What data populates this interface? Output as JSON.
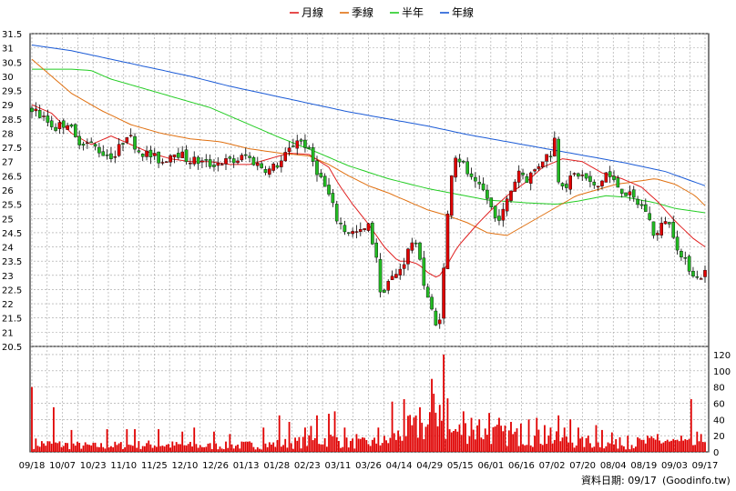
{
  "chart_data": {
    "type": "candlestick",
    "legend": [
      {
        "label": "月線",
        "color": "#e02020"
      },
      {
        "label": "季線",
        "color": "#e07010"
      },
      {
        "label": "半年",
        "color": "#22cc22"
      },
      {
        "label": "年線",
        "color": "#1a5ad6"
      }
    ],
    "price_axis": {
      "ylim": [
        20.5,
        31.5
      ],
      "ticks": [
        "20.5",
        "21",
        "21.5",
        "22",
        "22.5",
        "23",
        "23.5",
        "24",
        "24.5",
        "25",
        "25.5",
        "26",
        "26.5",
        "27",
        "27.5",
        "28",
        "28.5",
        "29",
        "29.5",
        "30",
        "30.5",
        "31",
        "31.5"
      ]
    },
    "volume_axis": {
      "ylim": [
        0,
        130
      ],
      "ticks": [
        "0",
        "20",
        "40",
        "60",
        "80",
        "100",
        "120"
      ]
    },
    "x_ticks": [
      "09/18",
      "10/07",
      "10/23",
      "11/10",
      "11/25",
      "12/10",
      "12/26",
      "01/13",
      "01/28",
      "02/23",
      "03/11",
      "03/26",
      "04/14",
      "04/29",
      "05/15",
      "06/01",
      "06/16",
      "07/02",
      "07/20",
      "08/04",
      "08/19",
      "09/03",
      "09/17"
    ],
    "colors": {
      "up": "#e00000",
      "down": "#22bb22",
      "volume": "#e00000",
      "grid": "#a0a0a0"
    },
    "lines": {
      "yearly": [
        [
          0,
          31.1
        ],
        [
          20,
          30.9
        ],
        [
          40,
          30.6
        ],
        [
          60,
          30.3
        ],
        [
          80,
          30.0
        ],
        [
          100,
          29.65
        ],
        [
          120,
          29.35
        ],
        [
          140,
          29.05
        ],
        [
          160,
          28.75
        ],
        [
          180,
          28.5
        ],
        [
          200,
          28.25
        ],
        [
          220,
          27.95
        ],
        [
          240,
          27.7
        ],
        [
          260,
          27.45
        ],
        [
          280,
          27.2
        ],
        [
          300,
          26.95
        ],
        [
          320,
          26.65
        ],
        [
          340,
          26.15
        ]
      ],
      "half": [
        [
          0,
          30.25
        ],
        [
          20,
          30.25
        ],
        [
          30,
          30.2
        ],
        [
          40,
          29.9
        ],
        [
          55,
          29.6
        ],
        [
          70,
          29.3
        ],
        [
          90,
          28.9
        ],
        [
          110,
          28.3
        ],
        [
          125,
          27.85
        ],
        [
          145,
          27.3
        ],
        [
          160,
          26.85
        ],
        [
          180,
          26.4
        ],
        [
          200,
          26.05
        ],
        [
          215,
          25.85
        ],
        [
          230,
          25.65
        ],
        [
          250,
          25.55
        ],
        [
          265,
          25.5
        ],
        [
          275,
          25.6
        ],
        [
          290,
          25.8
        ],
        [
          300,
          25.75
        ],
        [
          315,
          25.55
        ],
        [
          325,
          25.35
        ],
        [
          340,
          25.2
        ]
      ],
      "quarterly": [
        [
          0,
          30.6
        ],
        [
          10,
          30.0
        ],
        [
          20,
          29.4
        ],
        [
          35,
          28.8
        ],
        [
          50,
          28.3
        ],
        [
          65,
          28.0
        ],
        [
          80,
          27.8
        ],
        [
          95,
          27.7
        ],
        [
          110,
          27.45
        ],
        [
          125,
          27.3
        ],
        [
          140,
          27.2
        ],
        [
          150,
          26.9
        ],
        [
          160,
          26.5
        ],
        [
          170,
          26.15
        ],
        [
          180,
          25.9
        ],
        [
          190,
          25.6
        ],
        [
          200,
          25.3
        ],
        [
          210,
          25.1
        ],
        [
          220,
          24.85
        ],
        [
          230,
          24.5
        ],
        [
          240,
          24.4
        ],
        [
          255,
          25.0
        ],
        [
          265,
          25.4
        ],
        [
          275,
          25.8
        ],
        [
          285,
          26.0
        ],
        [
          295,
          26.2
        ],
        [
          305,
          26.3
        ],
        [
          315,
          26.4
        ],
        [
          325,
          26.2
        ],
        [
          335,
          25.8
        ],
        [
          340,
          25.45
        ]
      ],
      "monthly": [
        [
          0,
          29.0
        ],
        [
          10,
          28.7
        ],
        [
          20,
          28.0
        ],
        [
          30,
          27.6
        ],
        [
          40,
          27.9
        ],
        [
          50,
          27.6
        ],
        [
          60,
          27.3
        ],
        [
          70,
          27.1
        ],
        [
          80,
          27.0
        ],
        [
          90,
          27.0
        ],
        [
          100,
          26.9
        ],
        [
          110,
          26.9
        ],
        [
          120,
          27.1
        ],
        [
          130,
          27.3
        ],
        [
          140,
          27.25
        ],
        [
          150,
          26.8
        ],
        [
          155,
          26.2
        ],
        [
          162,
          25.5
        ],
        [
          170,
          24.8
        ],
        [
          178,
          24.0
        ],
        [
          185,
          23.5
        ],
        [
          190,
          23.5
        ],
        [
          195,
          23.4
        ],
        [
          200,
          23.1
        ],
        [
          205,
          22.9
        ],
        [
          210,
          23.4
        ],
        [
          215,
          24.0
        ],
        [
          225,
          24.8
        ],
        [
          232,
          25.3
        ],
        [
          240,
          25.8
        ],
        [
          250,
          26.3
        ],
        [
          258,
          26.8
        ],
        [
          268,
          27.1
        ],
        [
          278,
          27.0
        ],
        [
          288,
          26.6
        ],
        [
          298,
          26.4
        ],
        [
          308,
          26.1
        ],
        [
          316,
          25.6
        ],
        [
          325,
          24.9
        ],
        [
          334,
          24.3
        ],
        [
          340,
          24.0
        ]
      ]
    },
    "price_anchors": [
      [
        0,
        28.9
      ],
      [
        6,
        28.5
      ],
      [
        12,
        28.2
      ],
      [
        18,
        28.4
      ],
      [
        22,
        27.8
      ],
      [
        30,
        27.6
      ],
      [
        36,
        27.3
      ],
      [
        42,
        27.2
      ],
      [
        48,
        28.0
      ],
      [
        54,
        27.4
      ],
      [
        60,
        27.2
      ],
      [
        66,
        27.0
      ],
      [
        72,
        27.4
      ],
      [
        78,
        27.1
      ],
      [
        84,
        27.0
      ],
      [
        90,
        26.9
      ],
      [
        96,
        27.0
      ],
      [
        102,
        27.0
      ],
      [
        108,
        27.2
      ],
      [
        114,
        26.9
      ],
      [
        120,
        26.7
      ],
      [
        126,
        27.0
      ],
      [
        130,
        27.4
      ],
      [
        134,
        27.8
      ],
      [
        138,
        27.6
      ],
      [
        142,
        27.0
      ],
      [
        146,
        26.4
      ],
      [
        150,
        25.8
      ],
      [
        154,
        25.0
      ],
      [
        158,
        24.6
      ],
      [
        162,
        24.5
      ],
      [
        166,
        24.5
      ],
      [
        170,
        24.7
      ],
      [
        174,
        23.7
      ],
      [
        176,
        22.3
      ],
      [
        180,
        22.8
      ],
      [
        184,
        23.0
      ],
      [
        188,
        23.5
      ],
      [
        192,
        24.2
      ],
      [
        196,
        23.7
      ],
      [
        198,
        22.7
      ],
      [
        201,
        22.0
      ],
      [
        203,
        21.4
      ],
      [
        205,
        21.0
      ],
      [
        207,
        22.2
      ],
      [
        209,
        24.2
      ],
      [
        211,
        26.0
      ],
      [
        213,
        27.3
      ],
      [
        217,
        27.0
      ],
      [
        223,
        26.2
      ],
      [
        229,
        25.9
      ],
      [
        234,
        25.0
      ],
      [
        238,
        25.2
      ],
      [
        242,
        26.0
      ],
      [
        246,
        26.7
      ],
      [
        250,
        26.4
      ],
      [
        254,
        26.7
      ],
      [
        258,
        27.1
      ],
      [
        262,
        27.3
      ],
      [
        264,
        27.8
      ],
      [
        266,
        26.4
      ],
      [
        270,
        26.2
      ],
      [
        275,
        26.6
      ],
      [
        280,
        26.4
      ],
      [
        285,
        26.0
      ],
      [
        290,
        26.6
      ],
      [
        295,
        26.2
      ],
      [
        300,
        25.9
      ],
      [
        305,
        25.6
      ],
      [
        310,
        25.3
      ],
      [
        315,
        24.3
      ],
      [
        320,
        25.0
      ],
      [
        324,
        24.5
      ],
      [
        328,
        23.6
      ],
      [
        332,
        23.3
      ],
      [
        336,
        22.9
      ],
      [
        340,
        23.1
      ]
    ],
    "volume_profile": [
      [
        0,
        12
      ],
      [
        30,
        8
      ],
      [
        60,
        10
      ],
      [
        90,
        8
      ],
      [
        120,
        10
      ],
      [
        140,
        14
      ],
      [
        150,
        18
      ],
      [
        160,
        12
      ],
      [
        170,
        12
      ],
      [
        180,
        15
      ],
      [
        190,
        30
      ],
      [
        200,
        35
      ],
      [
        205,
        60
      ],
      [
        210,
        25
      ],
      [
        220,
        30
      ],
      [
        240,
        22
      ],
      [
        262,
        18
      ],
      [
        280,
        12
      ],
      [
        300,
        10
      ],
      [
        320,
        15
      ],
      [
        340,
        8
      ]
    ],
    "volume_spikes": [
      [
        0,
        80
      ],
      [
        11,
        55
      ],
      [
        20,
        27
      ],
      [
        38,
        28
      ],
      [
        48,
        28
      ],
      [
        52,
        28
      ],
      [
        64,
        28
      ],
      [
        76,
        25
      ],
      [
        82,
        30
      ],
      [
        92,
        25
      ],
      [
        100,
        22
      ],
      [
        117,
        30
      ],
      [
        125,
        45
      ],
      [
        130,
        37
      ],
      [
        138,
        30
      ],
      [
        141,
        32
      ],
      [
        144,
        45
      ],
      [
        150,
        47
      ],
      [
        153,
        50
      ],
      [
        158,
        30
      ],
      [
        164,
        22
      ],
      [
        175,
        30
      ],
      [
        182,
        62
      ],
      [
        188,
        65
      ],
      [
        196,
        55
      ],
      [
        202,
        90
      ],
      [
        206,
        58
      ],
      [
        208,
        120
      ],
      [
        210,
        66
      ],
      [
        214,
        28
      ],
      [
        218,
        50
      ],
      [
        222,
        42
      ],
      [
        226,
        40
      ],
      [
        231,
        48
      ],
      [
        236,
        42
      ],
      [
        242,
        37
      ],
      [
        247,
        35
      ],
      [
        251,
        40
      ],
      [
        255,
        42
      ],
      [
        259,
        33
      ],
      [
        262,
        30
      ],
      [
        266,
        45
      ],
      [
        269,
        30
      ],
      [
        272,
        40
      ],
      [
        276,
        30
      ],
      [
        281,
        20
      ],
      [
        285,
        33
      ],
      [
        288,
        27
      ],
      [
        293,
        24
      ],
      [
        297,
        18
      ],
      [
        301,
        20
      ],
      [
        306,
        18
      ],
      [
        311,
        20
      ],
      [
        316,
        22
      ],
      [
        321,
        15
      ],
      [
        326,
        15
      ],
      [
        328,
        20
      ],
      [
        333,
        65
      ],
      [
        336,
        25
      ],
      [
        338,
        22
      ],
      [
        340,
        12
      ]
    ]
  },
  "footer": {
    "date_text": "資料日期: 09/17",
    "source_text": "(Goodinfo.tw)"
  }
}
